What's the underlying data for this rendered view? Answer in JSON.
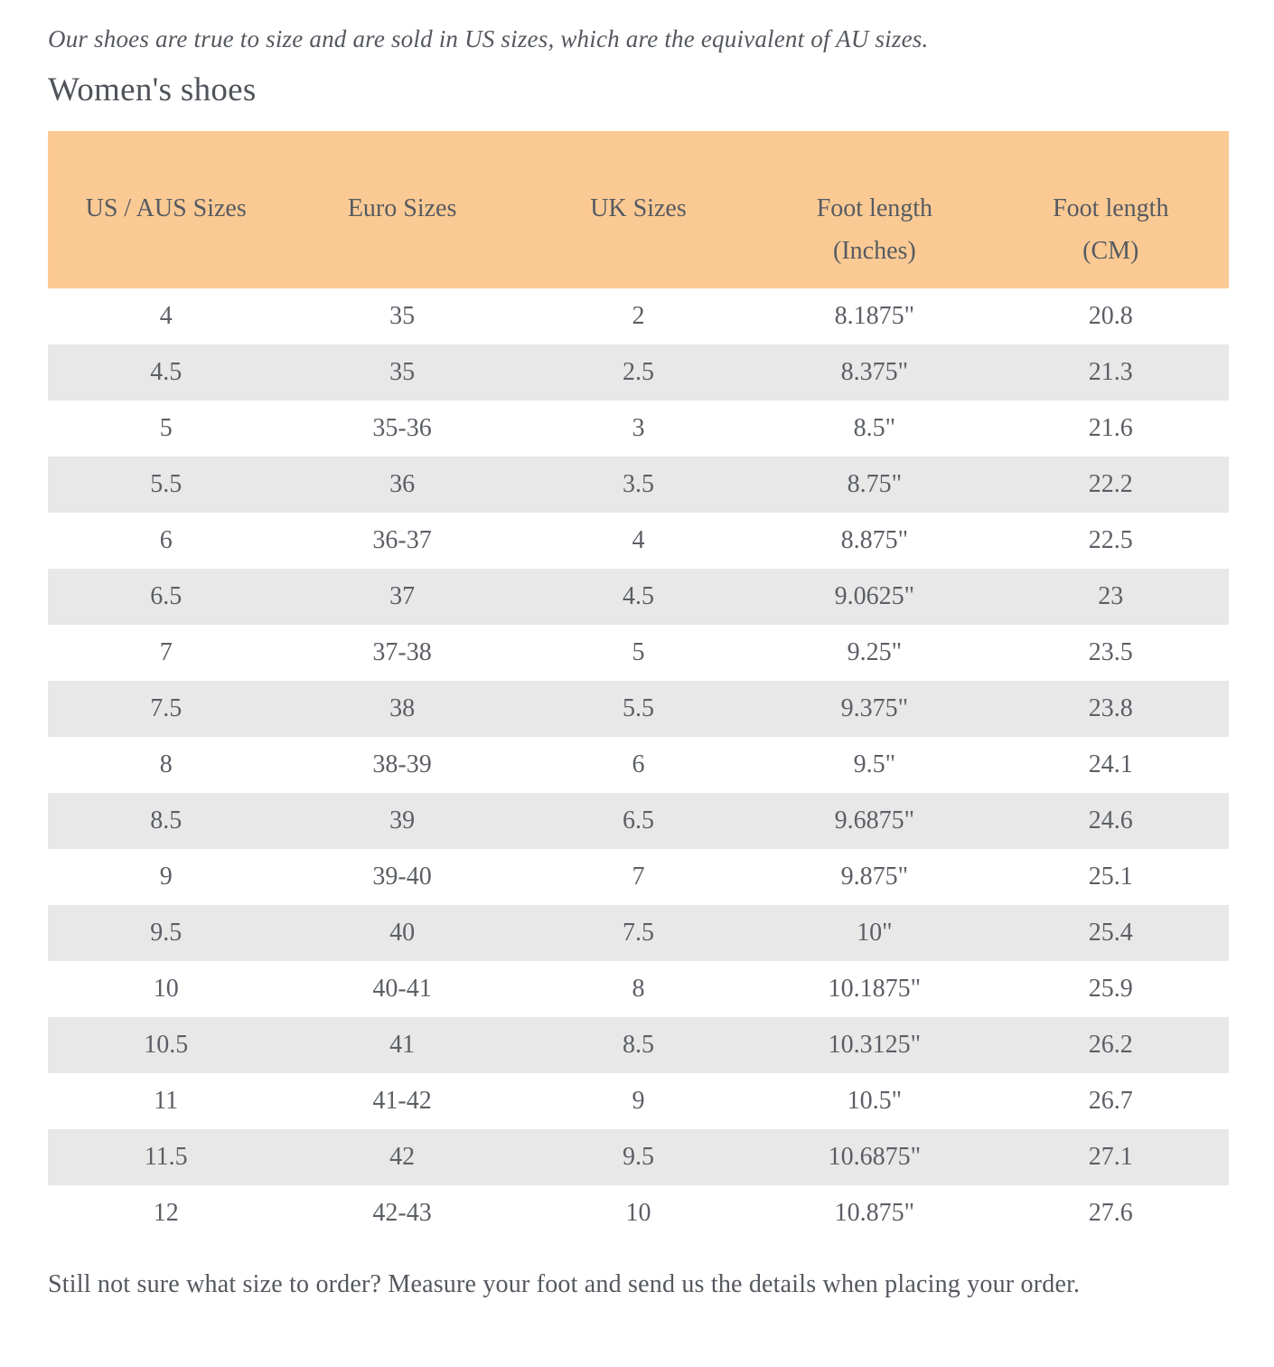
{
  "page": {
    "intro": "Our shoes are true to size and are sold in US sizes, which are the equivalent of AU sizes.",
    "heading": "Women's shoes",
    "footer": "Still not sure what size to order? Measure your foot and send us the details when placing your order."
  },
  "colors": {
    "header_bg": "#fbca94",
    "stripe_bg": "#e8e8e8",
    "text": "#54585e"
  },
  "table": {
    "headers": [
      {
        "line1": "US / AUS Sizes",
        "line2": ""
      },
      {
        "line1": "Euro Sizes",
        "line2": ""
      },
      {
        "line1": "UK Sizes",
        "line2": ""
      },
      {
        "line1": "Foot length",
        "line2": "(Inches)"
      },
      {
        "line1": "Foot length",
        "line2": "(CM)"
      }
    ],
    "rows": [
      [
        "4",
        "35",
        "2",
        "8.1875\"",
        "20.8"
      ],
      [
        "4.5",
        "35",
        "2.5",
        "8.375\"",
        "21.3"
      ],
      [
        "5",
        "35-36",
        "3",
        "8.5\"",
        "21.6"
      ],
      [
        "5.5",
        "36",
        "3.5",
        "8.75\"",
        "22.2"
      ],
      [
        "6",
        "36-37",
        "4",
        "8.875\"",
        "22.5"
      ],
      [
        "6.5",
        "37",
        "4.5",
        "9.0625\"",
        "23"
      ],
      [
        "7",
        "37-38",
        "5",
        "9.25\"",
        "23.5"
      ],
      [
        "7.5",
        "38",
        "5.5",
        "9.375\"",
        "23.8"
      ],
      [
        "8",
        "38-39",
        "6",
        "9.5\"",
        "24.1"
      ],
      [
        "8.5",
        "39",
        "6.5",
        "9.6875\"",
        "24.6"
      ],
      [
        "9",
        "39-40",
        "7",
        "9.875\"",
        "25.1"
      ],
      [
        "9.5",
        "40",
        "7.5",
        "10\"",
        "25.4"
      ],
      [
        "10",
        "40-41",
        "8",
        "10.1875\"",
        "25.9"
      ],
      [
        "10.5",
        "41",
        "8.5",
        "10.3125\"",
        "26.2"
      ],
      [
        "11",
        "41-42",
        "9",
        "10.5\"",
        "26.7"
      ],
      [
        "11.5",
        "42",
        "9.5",
        "10.6875\"",
        "27.1"
      ],
      [
        "12",
        "42-43",
        "10",
        "10.875\"",
        "27.6"
      ]
    ]
  }
}
